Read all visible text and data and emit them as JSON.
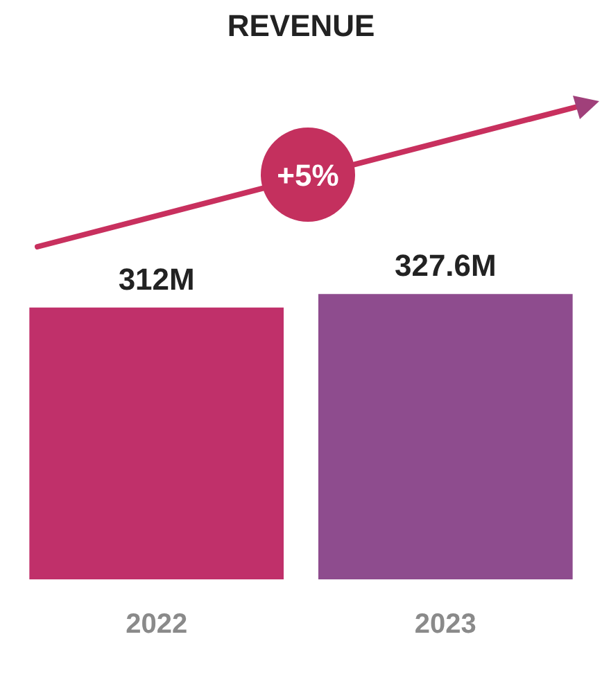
{
  "chart_data": {
    "type": "bar",
    "title": "REVENUE",
    "categories": [
      "2022",
      "2023"
    ],
    "values": [
      312,
      327.6
    ],
    "colors": [
      "#c0306a",
      "#8e4c8e"
    ],
    "value_labels": [
      "312M",
      "327.6M"
    ],
    "annotations": [
      "+5%"
    ]
  }
}
